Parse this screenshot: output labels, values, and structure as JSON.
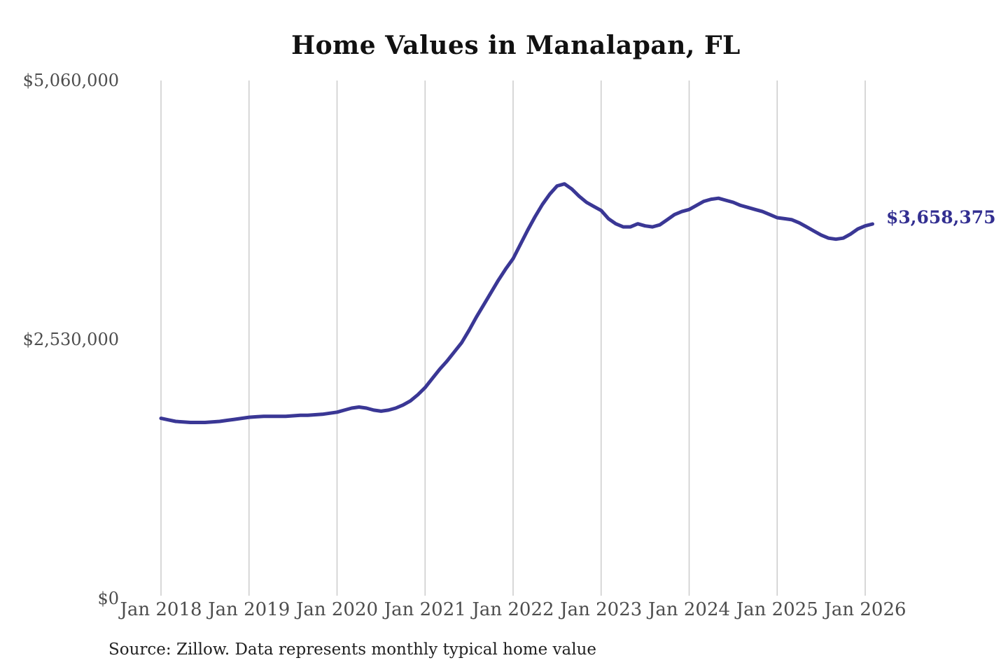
{
  "chart_data": {
    "type": "line",
    "title": "Home Values in Manalapan, FL",
    "source_note": "Source: Zillow. Data represents monthly typical home value",
    "end_label": "$3,658,375",
    "latest_value": 3658375,
    "x_start_month": "2018-01",
    "x_end_month": "2026-02",
    "xtick_labels": [
      "Jan 2018",
      "Jan 2019",
      "Jan 2020",
      "Jan 2021",
      "Jan 2022",
      "Jan 2023",
      "Jan 2024",
      "Jan 2025",
      "Jan 2026"
    ],
    "yticks": [
      {
        "label": "$0",
        "value": 0
      },
      {
        "label": "$2,530,000",
        "value": 2530000
      },
      {
        "label": "$5,060,000",
        "value": 5060000
      }
    ],
    "ylim": [
      0,
      5060000
    ],
    "grid": "vertical-only",
    "legend": "none",
    "line_color": "#3a3795",
    "end_label_color": "#332f91",
    "gridline_color": "#cccccc",
    "axis_label_color": "#4d4d4d",
    "title_color": "#111111",
    "values_monthly": [
      1760000,
      1745000,
      1730000,
      1725000,
      1720000,
      1720000,
      1720000,
      1725000,
      1730000,
      1740000,
      1750000,
      1760000,
      1770000,
      1775000,
      1780000,
      1780000,
      1780000,
      1780000,
      1785000,
      1790000,
      1790000,
      1795000,
      1800000,
      1810000,
      1820000,
      1840000,
      1860000,
      1870000,
      1860000,
      1840000,
      1830000,
      1840000,
      1860000,
      1890000,
      1930000,
      1990000,
      2060000,
      2150000,
      2240000,
      2320000,
      2410000,
      2500000,
      2620000,
      2750000,
      2870000,
      2990000,
      3110000,
      3220000,
      3320000,
      3460000,
      3600000,
      3730000,
      3850000,
      3950000,
      4030000,
      4050000,
      4000000,
      3930000,
      3870000,
      3830000,
      3790000,
      3710000,
      3660000,
      3630000,
      3630000,
      3660000,
      3640000,
      3630000,
      3650000,
      3700000,
      3750000,
      3780000,
      3800000,
      3840000,
      3880000,
      3900000,
      3910000,
      3890000,
      3870000,
      3840000,
      3820000,
      3800000,
      3780000,
      3750000,
      3720000,
      3710000,
      3700000,
      3670000,
      3630000,
      3590000,
      3550000,
      3520000,
      3510000,
      3520000,
      3560000,
      3610000,
      3640000,
      3658375
    ]
  }
}
